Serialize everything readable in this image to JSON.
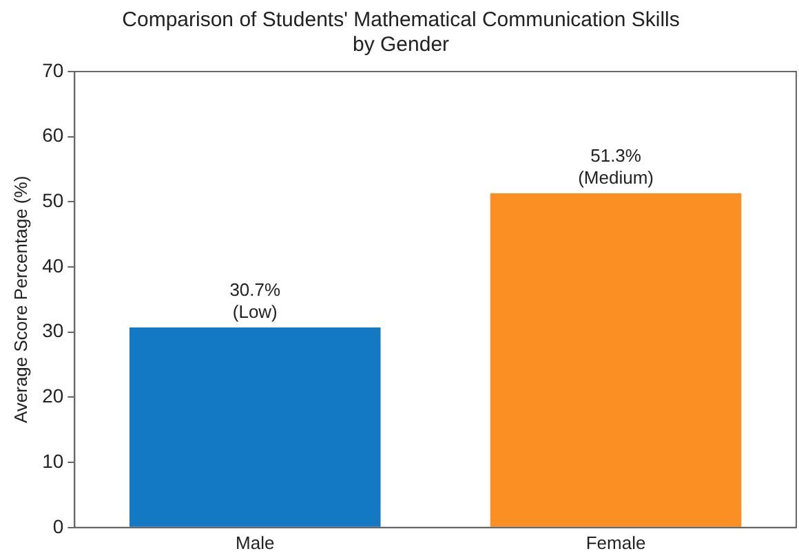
{
  "chart_data": {
    "type": "bar",
    "title": "Comparison of Students' Mathematical Communication Skills\nby Gender",
    "ylabel": "Average Score Percentage (%)",
    "categories": [
      "Male",
      "Female"
    ],
    "values": [
      30.7,
      51.3
    ],
    "colors": [
      "#1479c4",
      "#fb8f24"
    ],
    "value_labels": [
      "30.7%\n(Low)",
      "51.3%\n(Medium)"
    ],
    "ylim": [
      0,
      70
    ],
    "yticks": [
      0,
      10,
      20,
      30,
      40,
      50,
      60,
      70
    ],
    "grid": false,
    "legend": false
  }
}
